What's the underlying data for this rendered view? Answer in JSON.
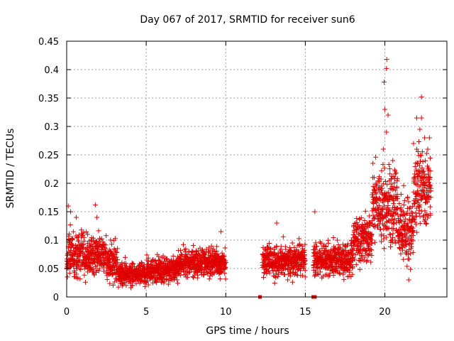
{
  "chart_data": {
    "type": "scatter",
    "title": "Day 067 of 2017, SRMTID for receiver sun6",
    "xlabel": "GPS time / hours",
    "ylabel": "SRMTID / TECUs",
    "xlim": [
      0,
      23.9
    ],
    "ylim": [
      0,
      0.45
    ],
    "x_ticks": [
      0,
      5,
      10,
      15,
      20
    ],
    "x_tick_labels": [
      "0",
      "5",
      "10",
      "15",
      "20"
    ],
    "y_ticks": [
      0,
      0.05,
      0.1,
      0.15,
      0.2,
      0.25,
      0.3,
      0.35,
      0.4,
      0.45
    ],
    "y_tick_labels": [
      "0",
      "0.05",
      "0.1",
      "0.15",
      "0.2",
      "0.25",
      "0.3",
      "0.35",
      "0.4",
      "0.45"
    ],
    "grid": true,
    "marker": "plus",
    "series_color": "#e00000",
    "series": [
      {
        "name": "SRMTID",
        "segments": [
          {
            "x_range": [
              0.0,
              1.0
            ],
            "y_mean": 0.075,
            "y_spread": 0.035
          },
          {
            "x_range": [
              1.0,
              2.5
            ],
            "y_mean": 0.075,
            "y_spread": 0.03
          },
          {
            "x_range": [
              2.5,
              3.2
            ],
            "y_mean": 0.06,
            "y_spread": 0.03
          },
          {
            "x_range": [
              3.2,
              5.0
            ],
            "y_mean": 0.04,
            "y_spread": 0.018
          },
          {
            "x_range": [
              5.0,
              7.0
            ],
            "y_mean": 0.048,
            "y_spread": 0.02
          },
          {
            "x_range": [
              7.0,
              10.0
            ],
            "y_mean": 0.06,
            "y_spread": 0.022
          },
          {
            "x_range": [
              12.3,
              15.0
            ],
            "y_mean": 0.065,
            "y_spread": 0.025
          },
          {
            "x_range": [
              15.5,
              18.0
            ],
            "y_mean": 0.065,
            "y_spread": 0.025
          },
          {
            "x_range": [
              18.0,
              19.2
            ],
            "y_mean": 0.1,
            "y_spread": 0.035
          },
          {
            "x_range": [
              19.2,
              20.8
            ],
            "y_mean": 0.16,
            "y_spread": 0.06
          },
          {
            "x_range": [
              20.8,
              21.8
            ],
            "y_mean": 0.12,
            "y_spread": 0.05
          },
          {
            "x_range": [
              21.8,
              22.9
            ],
            "y_mean": 0.19,
            "y_spread": 0.06
          }
        ],
        "highlights": [
          {
            "x": 0.1,
            "y": 0.16
          },
          {
            "x": 0.25,
            "y": 0.15
          },
          {
            "x": 0.6,
            "y": 0.14
          },
          {
            "x": 1.8,
            "y": 0.162
          },
          {
            "x": 1.9,
            "y": 0.14
          },
          {
            "x": 9.7,
            "y": 0.115
          },
          {
            "x": 13.2,
            "y": 0.13
          },
          {
            "x": 15.6,
            "y": 0.15
          },
          {
            "x": 19.95,
            "y": 0.378
          },
          {
            "x": 20.1,
            "y": 0.402
          },
          {
            "x": 20.12,
            "y": 0.418
          },
          {
            "x": 20.0,
            "y": 0.33
          },
          {
            "x": 20.2,
            "y": 0.32
          },
          {
            "x": 20.1,
            "y": 0.29
          },
          {
            "x": 19.9,
            "y": 0.26
          },
          {
            "x": 22.3,
            "y": 0.352
          },
          {
            "x": 22.0,
            "y": 0.315
          },
          {
            "x": 22.3,
            "y": 0.315
          },
          {
            "x": 22.2,
            "y": 0.295
          },
          {
            "x": 21.8,
            "y": 0.27
          },
          {
            "x": 22.5,
            "y": 0.28
          },
          {
            "x": 22.0,
            "y": 0.26
          },
          {
            "x": 22.8,
            "y": 0.28
          },
          {
            "x": 21.5,
            "y": 0.03
          },
          {
            "x": 20.5,
            "y": 0.24
          }
        ],
        "zero_points": [
          {
            "x": 12.15,
            "y": 0.0
          },
          {
            "x": 15.5,
            "y": 0.0
          },
          {
            "x": 15.6,
            "y": 0.0
          }
        ]
      }
    ]
  }
}
